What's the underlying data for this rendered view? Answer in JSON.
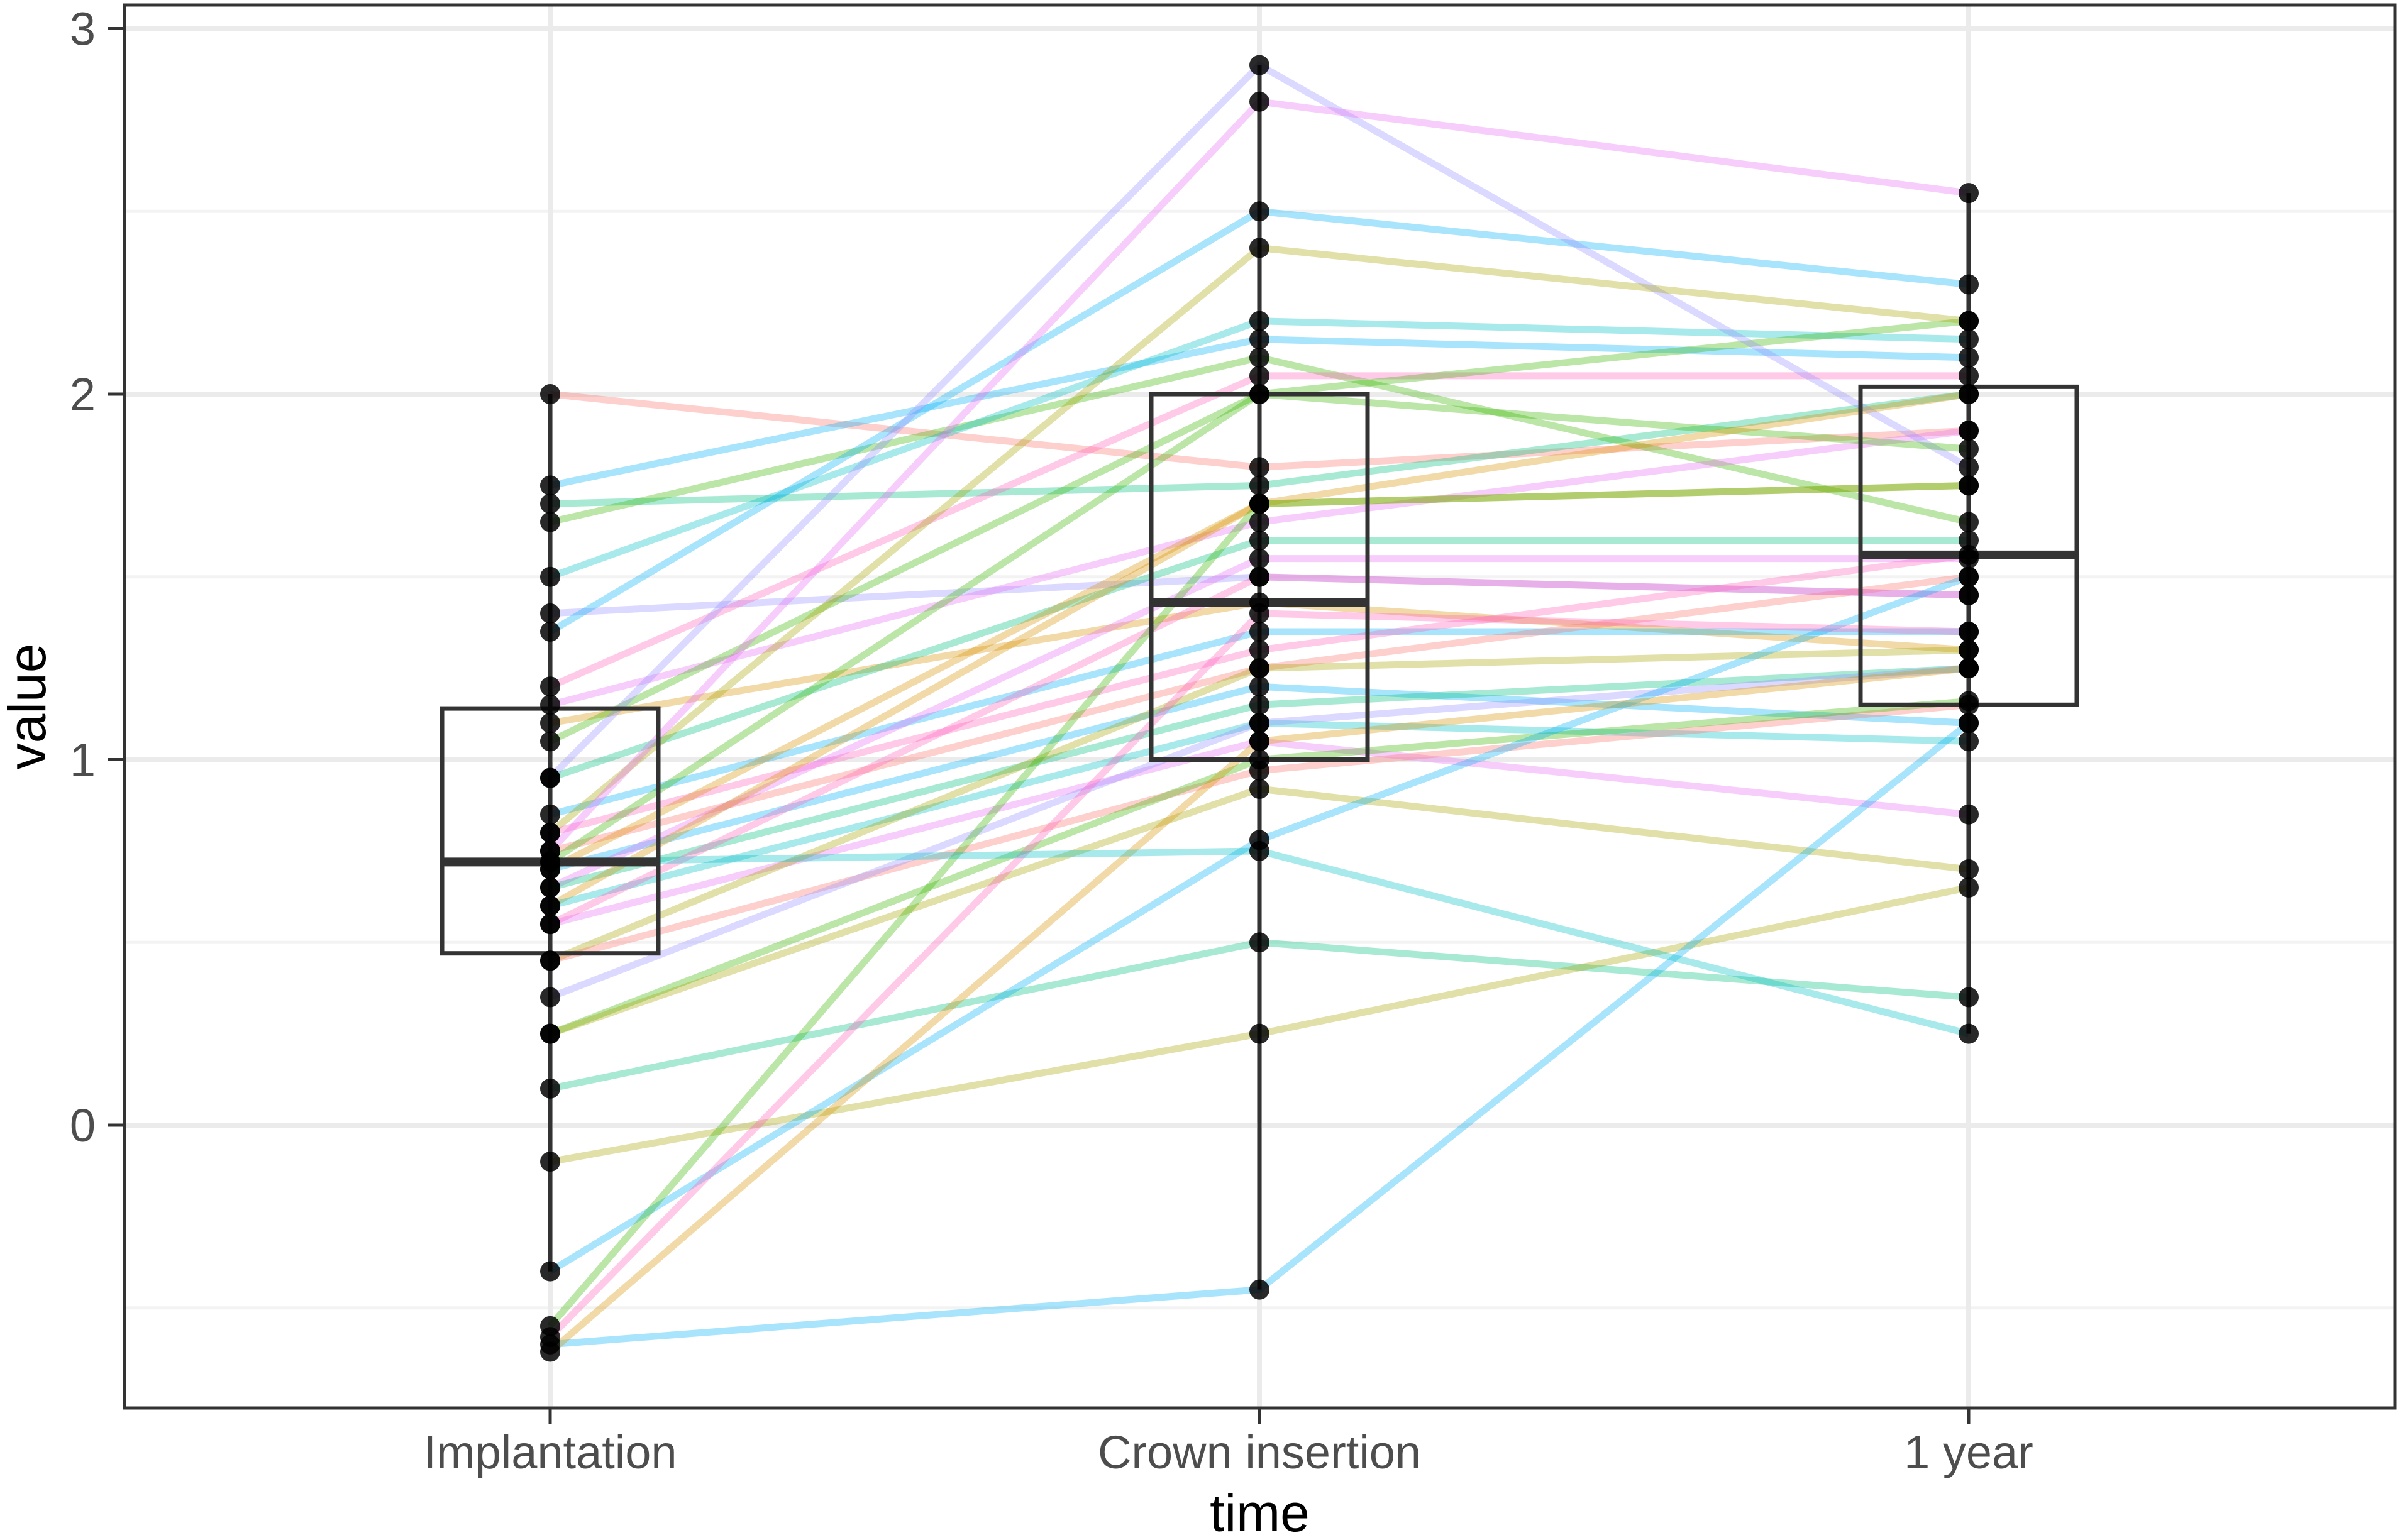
{
  "figure": {
    "background_color": "#ffffff",
    "panel_border_color": "#333333",
    "grid_major_color": "#ebebeb",
    "grid_minor_color": "#f3f3f3",
    "tick_color": "#333333",
    "tick_label_color": "#4d4d4d",
    "axis_title_color": "#000000",
    "point_color": "#000000",
    "box_color": "#333333"
  },
  "chart_data": {
    "type": "boxplot",
    "subtype": "paired-boxplot-with-subject-lines",
    "title": "",
    "xlabel": "time",
    "ylabel": "value",
    "x_categories": [
      "Implantation",
      "Crown insertion",
      "1 year"
    ],
    "y_ticks": [
      0,
      1,
      2,
      3
    ],
    "y_minor_ticks": [
      -0.5,
      0.5,
      1.5,
      2.5
    ],
    "ylim": [
      -0.77,
      3.07
    ],
    "grid": "on",
    "legend": "none",
    "boxes": [
      {
        "category": "Implantation",
        "q1": 0.47,
        "median": 0.72,
        "q3": 1.14,
        "whisker_low": -0.4,
        "whisker_high": 2.0
      },
      {
        "category": "Crown insertion",
        "q1": 1.0,
        "median": 1.43,
        "q3": 2.0,
        "whisker_low": -0.45,
        "whisker_high": 2.9
      },
      {
        "category": "1 year",
        "q1": 1.15,
        "median": 1.56,
        "q3": 2.02,
        "whisker_low": 0.25,
        "whisker_high": 2.55
      }
    ],
    "line_palette": [
      "#F8766D",
      "#D89000",
      "#A3A500",
      "#39B600",
      "#00BF7D",
      "#00BFC4",
      "#00B0F6",
      "#9590FF",
      "#E76BF3",
      "#FF62BC"
    ],
    "subjects": [
      {
        "values": [
          2.0,
          1.8,
          1.9
        ],
        "color": 0
      },
      {
        "values": [
          1.75,
          2.15,
          2.1
        ],
        "color": 6
      },
      {
        "values": [
          1.7,
          1.75,
          2.0
        ],
        "color": 4
      },
      {
        "values": [
          1.65,
          2.1,
          1.65
        ],
        "color": 3
      },
      {
        "values": [
          1.5,
          2.2,
          2.15
        ],
        "color": 5
      },
      {
        "values": [
          1.4,
          1.5,
          1.45
        ],
        "color": 7
      },
      {
        "values": [
          1.35,
          2.5,
          2.3
        ],
        "color": 6
      },
      {
        "values": [
          1.2,
          2.05,
          2.05
        ],
        "color": 9
      },
      {
        "values": [
          1.15,
          1.65,
          1.9
        ],
        "color": 8
      },
      {
        "values": [
          1.1,
          1.43,
          1.3
        ],
        "color": 1
      },
      {
        "values": [
          1.05,
          2.0,
          2.2
        ],
        "color": 3
      },
      {
        "values": [
          0.95,
          2.9,
          1.8
        ],
        "color": 7
      },
      {
        "values": [
          0.95,
          1.6,
          1.6
        ],
        "color": 4
      },
      {
        "values": [
          0.85,
          1.35,
          1.35
        ],
        "color": 6
      },
      {
        "values": [
          0.8,
          2.4,
          2.2
        ],
        "color": 2
      },
      {
        "values": [
          0.8,
          1.3,
          1.56
        ],
        "color": 9
      },
      {
        "values": [
          0.75,
          2.8,
          2.55
        ],
        "color": 8
      },
      {
        "values": [
          0.75,
          1.25,
          1.5
        ],
        "color": 0
      },
      {
        "values": [
          0.72,
          2.0,
          1.85
        ],
        "color": 3
      },
      {
        "values": [
          0.7,
          1.7,
          1.75
        ],
        "color": 1
      },
      {
        "values": [
          0.7,
          1.2,
          1.1
        ],
        "color": 6
      },
      {
        "values": [
          0.65,
          1.55,
          1.55
        ],
        "color": 8
      },
      {
        "values": [
          0.65,
          1.15,
          1.25
        ],
        "color": 4
      },
      {
        "values": [
          0.6,
          1.7,
          2.0
        ],
        "color": 1
      },
      {
        "values": [
          0.6,
          1.1,
          1.05
        ],
        "color": 5
      },
      {
        "values": [
          0.55,
          1.5,
          1.45
        ],
        "color": 9
      },
      {
        "values": [
          0.55,
          1.05,
          0.85
        ],
        "color": 8
      },
      {
        "values": [
          0.45,
          1.25,
          1.3
        ],
        "color": 2
      },
      {
        "values": [
          0.45,
          0.97,
          1.15
        ],
        "color": 0
      },
      {
        "values": [
          0.35,
          1.1,
          1.25
        ],
        "color": 7
      },
      {
        "values": [
          0.25,
          1.0,
          1.16
        ],
        "color": 3
      },
      {
        "values": [
          0.25,
          0.92,
          0.7
        ],
        "color": 2
      },
      {
        "values": [
          0.1,
          0.5,
          0.35
        ],
        "color": 4
      },
      {
        "values": [
          -0.1,
          0.25,
          0.65
        ],
        "color": 2
      },
      {
        "values": [
          -0.4,
          0.78,
          1.5
        ],
        "color": 6
      },
      {
        "values": [
          -0.55,
          1.7,
          1.75
        ],
        "color": 3
      },
      {
        "values": [
          -0.58,
          1.4,
          1.35
        ],
        "color": 9
      },
      {
        "values": [
          -0.6,
          -0.45,
          1.1
        ],
        "color": 6
      },
      {
        "values": [
          -0.62,
          1.05,
          1.25
        ],
        "color": 1
      },
      {
        "values": [
          0.72,
          0.75,
          0.25
        ],
        "color": 5
      }
    ]
  }
}
